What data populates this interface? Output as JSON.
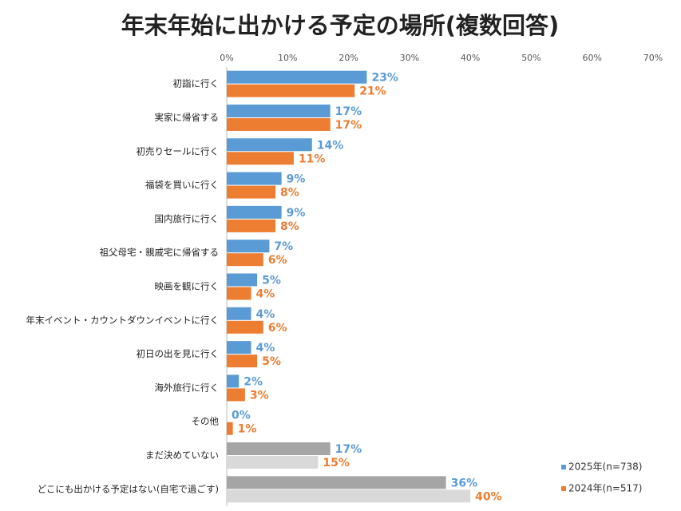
{
  "chart_data": {
    "type": "bar",
    "orientation": "horizontal",
    "title": "年末年始に出かける予定の場所(複数回答)",
    "categories": [
      "初詣に行く",
      "実家に帰省する",
      "初売りセールに行く",
      "福袋を買いに行く",
      "国内旅行に行く",
      "祖父母宅・親戚宅に帰省する",
      "映画を観に行く",
      "年末イベント・カウントダウンイベントに行く",
      "初日の出を見に行く",
      "海外旅行に行く",
      "その他",
      "まだ決めていない",
      "どこにも出かける予定はない(自宅で過ごす)"
    ],
    "series": [
      {
        "name": "2025年(n=738)",
        "color": "#5b9bd5",
        "colors": [
          "#5b9bd5",
          "#5b9bd5",
          "#5b9bd5",
          "#5b9bd5",
          "#5b9bd5",
          "#5b9bd5",
          "#5b9bd5",
          "#5b9bd5",
          "#5b9bd5",
          "#5b9bd5",
          "#5b9bd5",
          "#a5a5a5",
          "#a5a5a5"
        ],
        "values": [
          23,
          17,
          14,
          9,
          9,
          7,
          5,
          4,
          4,
          2,
          0,
          17,
          36
        ],
        "value_labels": [
          "23%",
          "17%",
          "14%",
          "9%",
          "9%",
          "7%",
          "5%",
          "4%",
          "4%",
          "2%",
          "0%",
          "17%",
          "36%"
        ]
      },
      {
        "name": "2024年(n=517)",
        "color": "#ed7d31",
        "colors": [
          "#ed7d31",
          "#ed7d31",
          "#ed7d31",
          "#ed7d31",
          "#ed7d31",
          "#ed7d31",
          "#ed7d31",
          "#ed7d31",
          "#ed7d31",
          "#ed7d31",
          "#ed7d31",
          "#d9d9d9",
          "#d9d9d9"
        ],
        "values": [
          21,
          17,
          11,
          8,
          8,
          6,
          4,
          6,
          5,
          3,
          1,
          15,
          40
        ],
        "value_labels": [
          "21%",
          "17%",
          "11%",
          "8%",
          "8%",
          "6%",
          "4%",
          "6%",
          "5%",
          "3%",
          "1%",
          "15%",
          "40%"
        ]
      }
    ],
    "xlim": [
      0,
      70
    ],
    "xticks": [
      {
        "value": 0,
        "label": "0%"
      },
      {
        "value": 10,
        "label": "10%"
      },
      {
        "value": 20,
        "label": "20%"
      },
      {
        "value": 30,
        "label": "30%"
      },
      {
        "value": 40,
        "label": "40%"
      },
      {
        "value": 50,
        "label": "50%"
      },
      {
        "value": 60,
        "label": "60%"
      },
      {
        "value": 70,
        "label": "70%"
      }
    ],
    "grid": false,
    "legend": "bottom-right"
  }
}
